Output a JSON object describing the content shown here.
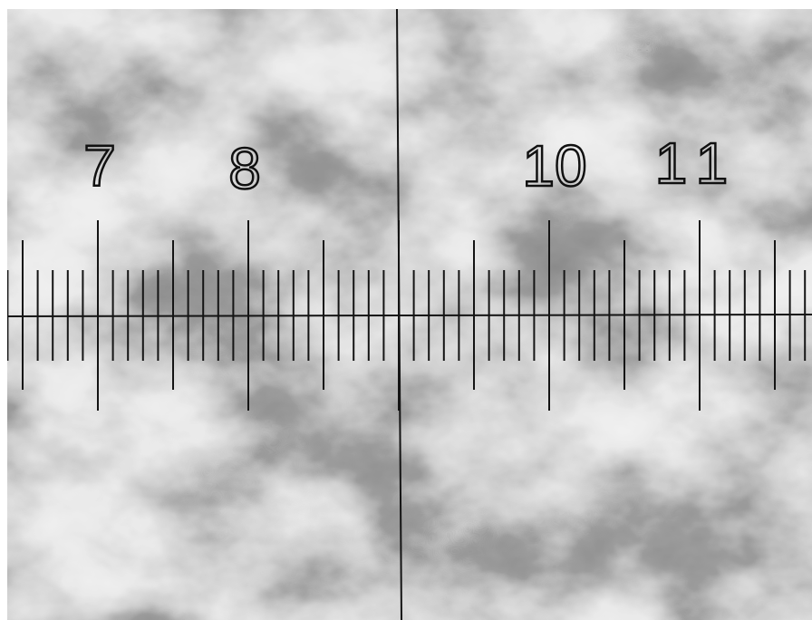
{
  "scale_labels": [
    "7",
    "8",
    "10",
    "11"
  ]
}
